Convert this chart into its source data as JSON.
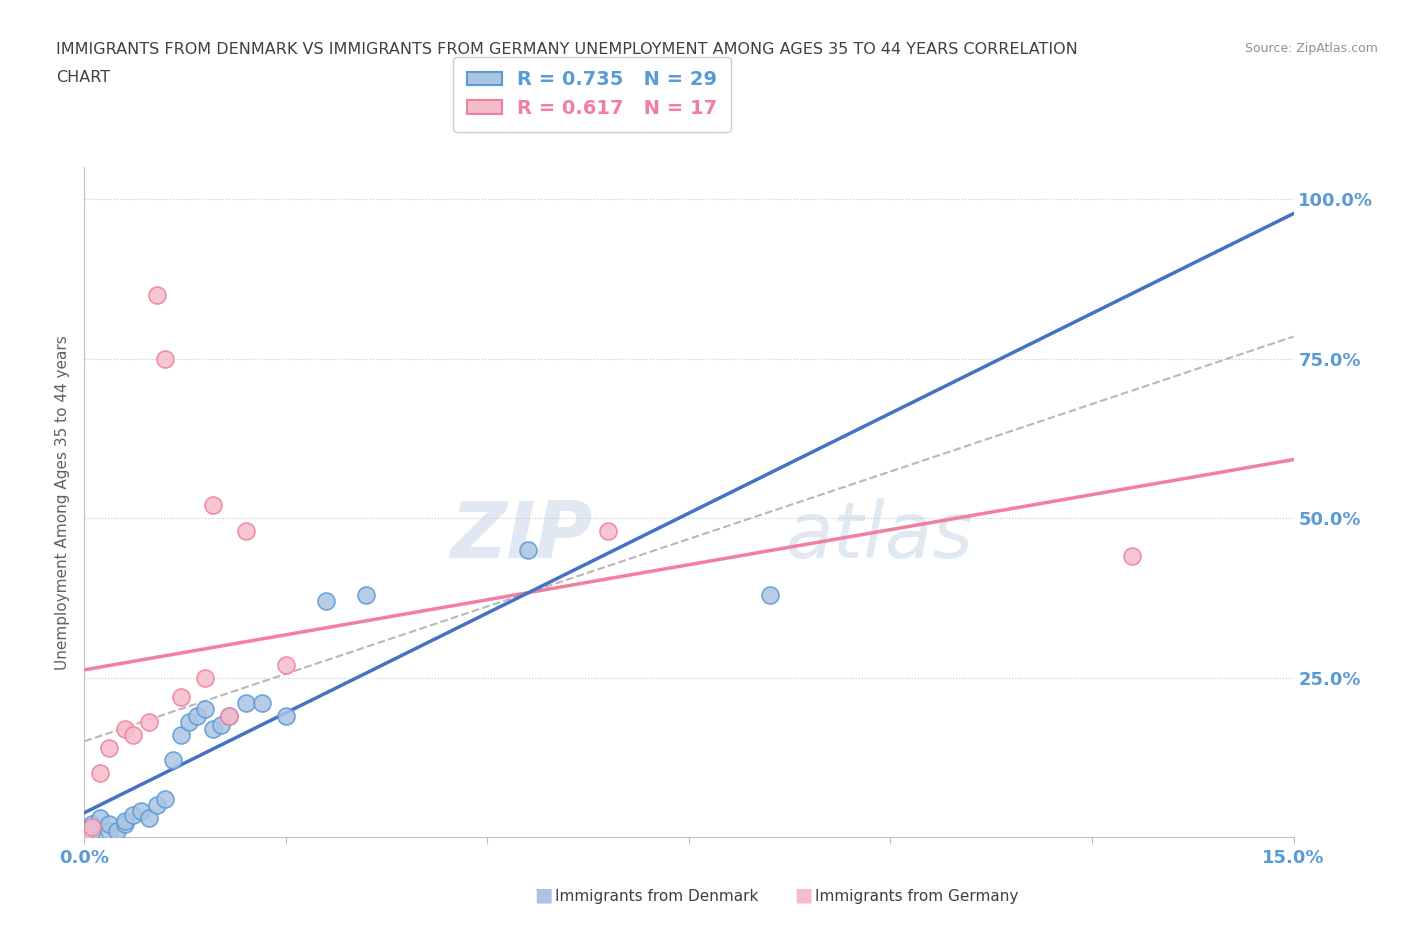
{
  "title_line1": "IMMIGRANTS FROM DENMARK VS IMMIGRANTS FROM GERMANY UNEMPLOYMENT AMONG AGES 35 TO 44 YEARS CORRELATION",
  "title_line2": "CHART",
  "source": "Source: ZipAtlas.com",
  "ylabel": "Unemployment Among Ages 35 to 44 years",
  "xlim": [
    0.0,
    0.15
  ],
  "ylim": [
    0.0,
    1.05
  ],
  "xticks": [
    0.0,
    0.025,
    0.05,
    0.075,
    0.1,
    0.125,
    0.15
  ],
  "xtick_labels": [
    "0.0%",
    "",
    "",
    "",
    "",
    "",
    "15.0%"
  ],
  "yticks": [
    0.0,
    0.25,
    0.5,
    0.75,
    1.0
  ],
  "ytick_labels": [
    "",
    "25.0%",
    "50.0%",
    "75.0%",
    "100.0%"
  ],
  "denmark_color": "#aac4e3",
  "germany_color": "#f5bccb",
  "denmark_edge": "#5b9bd5",
  "germany_edge": "#f07fa0",
  "line_denmark_color": "#4472c4",
  "line_germany_color": "#f07fa0",
  "line_dashed_color": "#b8b8b8",
  "R_denmark": 0.735,
  "N_denmark": 29,
  "R_germany": 0.617,
  "N_germany": 17,
  "denmark_x": [
    0.0,
    0.001,
    0.001,
    0.002,
    0.003,
    0.003,
    0.004,
    0.005,
    0.005,
    0.006,
    0.007,
    0.008,
    0.009,
    0.01,
    0.011,
    0.012,
    0.013,
    0.014,
    0.015,
    0.016,
    0.017,
    0.018,
    0.02,
    0.022,
    0.025,
    0.03,
    0.035,
    0.055,
    0.085
  ],
  "denmark_y": [
    0.0,
    0.01,
    0.02,
    0.03,
    0.01,
    0.02,
    0.01,
    0.02,
    0.025,
    0.035,
    0.04,
    0.03,
    0.05,
    0.06,
    0.12,
    0.16,
    0.18,
    0.19,
    0.2,
    0.17,
    0.175,
    0.19,
    0.21,
    0.21,
    0.19,
    0.37,
    0.38,
    0.45,
    0.38
  ],
  "germany_x": [
    0.0,
    0.001,
    0.002,
    0.003,
    0.005,
    0.006,
    0.008,
    0.009,
    0.01,
    0.012,
    0.015,
    0.016,
    0.018,
    0.02,
    0.025,
    0.065,
    0.13
  ],
  "germany_y": [
    0.0,
    0.015,
    0.1,
    0.14,
    0.17,
    0.16,
    0.18,
    0.85,
    0.75,
    0.22,
    0.25,
    0.52,
    0.19,
    0.48,
    0.27,
    0.48,
    0.44
  ],
  "watermark_zip": "ZIP",
  "watermark_atlas": "atlas",
  "background_color": "#ffffff",
  "grid_color": "#c8c8c8",
  "title_color": "#404040",
  "axis_label_color": "#606060",
  "tick_color": "#5b9bd5",
  "legend_dk_label": "R = 0.735   N = 29",
  "legend_de_label": "R = 0.617   N = 17",
  "bottom_legend_dk": "Immigrants from Denmark",
  "bottom_legend_de": "Immigrants from Germany"
}
